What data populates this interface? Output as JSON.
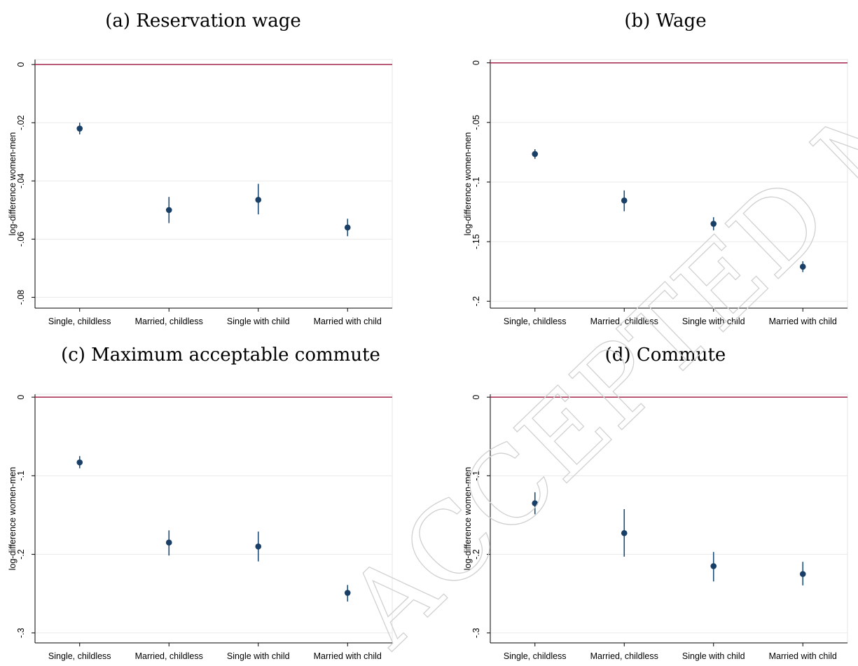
{
  "watermark": {
    "text": "ACCEPTED MANUSCRIPT"
  },
  "chart_data": [
    {
      "type": "scatter",
      "title": "(a) Reservation wage",
      "ylabel": "log-difference women-men",
      "categories": [
        "Single, childless",
        "Married, childless",
        "Single with child",
        "Married with child"
      ],
      "values": [
        -0.022,
        -0.05,
        -0.0465,
        -0.056
      ],
      "ci_low": [
        -0.024,
        -0.0545,
        -0.0515,
        -0.059
      ],
      "ci_high": [
        -0.02,
        -0.0455,
        -0.041,
        -0.053
      ],
      "ylim": [
        -0.083,
        0.001
      ],
      "yticks": [
        0,
        -0.02,
        -0.04,
        -0.06,
        -0.08
      ],
      "ytick_labels": [
        "0",
        "-.02",
        "-.04",
        "-.06",
        "-.08"
      ],
      "reference_line": 0,
      "grid": true
    },
    {
      "type": "scatter",
      "title": "(b) Wage",
      "ylabel": "log-difference women-men",
      "categories": [
        "Single, childless",
        "Married, childless",
        "Single with child",
        "Married with child"
      ],
      "values": [
        -0.0765,
        -0.1155,
        -0.135,
        -0.171
      ],
      "ci_low": [
        -0.0805,
        -0.1245,
        -0.1405,
        -0.1755
      ],
      "ci_high": [
        -0.0725,
        -0.107,
        -0.1295,
        -0.1665
      ],
      "ylim": [
        -0.204,
        0.001
      ],
      "yticks": [
        0,
        -0.05,
        -0.1,
        -0.15,
        -0.2
      ],
      "ytick_labels": [
        "0",
        "-.05",
        "-.1",
        "-.15",
        "-.2"
      ],
      "reference_line": 0,
      "grid": true
    },
    {
      "type": "scatter",
      "title": "(c) Maximum acceptable commute",
      "ylabel": "log-difference women-men",
      "categories": [
        "Single, childless",
        "Married, childless",
        "Single with child",
        "Married with child"
      ],
      "values": [
        -0.083,
        -0.185,
        -0.19,
        -0.249
      ],
      "ci_low": [
        -0.0905,
        -0.2015,
        -0.209,
        -0.26
      ],
      "ci_high": [
        -0.075,
        -0.1695,
        -0.171,
        -0.239
      ],
      "ylim": [
        -0.31,
        0.001
      ],
      "yticks": [
        0,
        -0.1,
        -0.2,
        -0.3
      ],
      "ytick_labels": [
        "0",
        "-.1",
        "-.2",
        "-.3"
      ],
      "reference_line": 0,
      "grid": true
    },
    {
      "type": "scatter",
      "title": "(d) Commute",
      "ylabel": "log-difference women-men",
      "categories": [
        "Single, childless",
        "Married, childless",
        "Single with child",
        "Married with child"
      ],
      "values": [
        -0.135,
        -0.173,
        -0.215,
        -0.225
      ],
      "ci_low": [
        -0.149,
        -0.203,
        -0.2345,
        -0.2395
      ],
      "ci_high": [
        -0.121,
        -0.1425,
        -0.197,
        -0.2095
      ],
      "ylim": [
        -0.31,
        0.001
      ],
      "yticks": [
        0,
        -0.1,
        -0.2,
        -0.3
      ],
      "ytick_labels": [
        "0",
        "-.1",
        "-.2",
        "-.3"
      ],
      "reference_line": 0,
      "grid": true
    }
  ]
}
